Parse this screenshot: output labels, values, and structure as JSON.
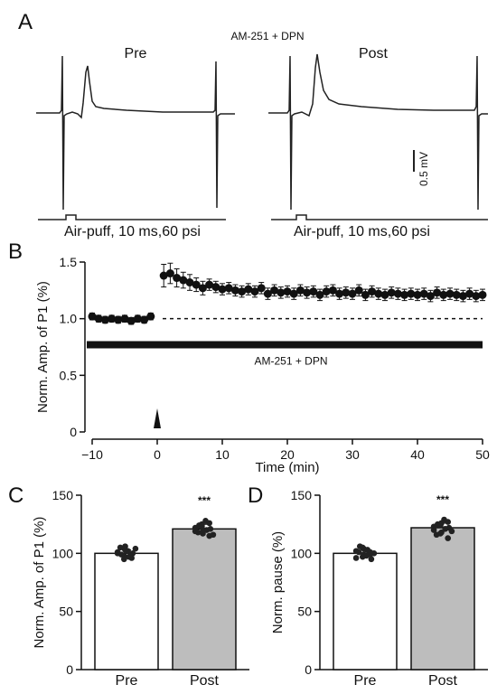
{
  "panels": {
    "A": "A",
    "B": "B",
    "C": "C",
    "D": "D"
  },
  "panel_a": {
    "condition": "AM-251 + DPN",
    "pre_label": "Pre",
    "post_label": "Post",
    "scale_bar": "0.5 mV",
    "stim_label_pre": "Air-puff, 10 ms,60 psi",
    "stim_label_post": "Air-puff, 10 ms,60 psi"
  },
  "chart_data": [
    {
      "type": "scatter",
      "panel": "B",
      "xlabel": "Time (min)",
      "ylabel": "Norm. Amp. of P1 (%)",
      "xlim": [
        -10,
        50
      ],
      "ylim": [
        0,
        1.5
      ],
      "xticks": [
        "−10",
        "0",
        "10",
        "20",
        "30",
        "40",
        "50"
      ],
      "yticks": [
        "0",
        "0.5",
        "1.0",
        "1.5"
      ],
      "drug_label": "AM-251 + DPN",
      "drug_bar": [
        -10,
        50
      ],
      "drug_bar_level": 0.77,
      "baseline": 1.0,
      "stim_time": 0,
      "x": [
        -10,
        -9,
        -8,
        -7,
        -6,
        -5,
        -4,
        -3,
        -2,
        -1,
        1,
        2,
        3,
        4,
        5,
        6,
        7,
        8,
        9,
        10,
        11,
        12,
        13,
        14,
        15,
        16,
        17,
        18,
        19,
        20,
        21,
        22,
        23,
        24,
        25,
        26,
        27,
        28,
        29,
        30,
        31,
        32,
        33,
        34,
        35,
        36,
        37,
        38,
        39,
        40,
        41,
        42,
        43,
        44,
        45,
        46,
        47,
        48,
        49,
        50
      ],
      "y": [
        1.02,
        1.0,
        0.99,
        1.0,
        0.99,
        1.0,
        0.98,
        1.0,
        0.99,
        1.02,
        1.38,
        1.4,
        1.36,
        1.34,
        1.32,
        1.3,
        1.27,
        1.3,
        1.28,
        1.26,
        1.27,
        1.25,
        1.24,
        1.26,
        1.24,
        1.27,
        1.22,
        1.25,
        1.23,
        1.24,
        1.22,
        1.25,
        1.23,
        1.24,
        1.21,
        1.24,
        1.25,
        1.22,
        1.23,
        1.22,
        1.25,
        1.21,
        1.24,
        1.22,
        1.21,
        1.23,
        1.22,
        1.21,
        1.22,
        1.21,
        1.22,
        1.2,
        1.23,
        1.21,
        1.22,
        1.21,
        1.2,
        1.22,
        1.2,
        1.21
      ],
      "err": [
        0.03,
        0.03,
        0.03,
        0.03,
        0.03,
        0.03,
        0.03,
        0.03,
        0.03,
        0.03,
        0.1,
        0.09,
        0.08,
        0.07,
        0.07,
        0.06,
        0.06,
        0.05,
        0.05,
        0.05,
        0.05,
        0.05,
        0.05,
        0.05,
        0.05,
        0.05,
        0.05,
        0.05,
        0.05,
        0.05,
        0.05,
        0.05,
        0.05,
        0.05,
        0.05,
        0.05,
        0.05,
        0.05,
        0.05,
        0.05,
        0.05,
        0.05,
        0.05,
        0.05,
        0.05,
        0.05,
        0.05,
        0.05,
        0.05,
        0.05,
        0.05,
        0.05,
        0.05,
        0.05,
        0.05,
        0.05,
        0.05,
        0.05,
        0.05,
        0.05
      ]
    },
    {
      "type": "bar",
      "panel": "C",
      "ylabel": "Norm. Amp. of P1 (%)",
      "ylim": [
        0,
        150
      ],
      "yticks": [
        "0",
        "50",
        "100",
        "150"
      ],
      "categories": [
        "Pre",
        "Post"
      ],
      "values": [
        100,
        121
      ],
      "errors": [
        3,
        4
      ],
      "colors": [
        "#ffffff",
        "#bdbdbd"
      ],
      "significance": "***",
      "points": [
        [
          101,
          98,
          103,
          96,
          100,
          105,
          99,
          102,
          97,
          104,
          100,
          95,
          106,
          99
        ],
        [
          119,
          123,
          117,
          126,
          121,
          118,
          124,
          128,
          120,
          116,
          122,
          125,
          119,
          115
        ]
      ]
    },
    {
      "type": "bar",
      "panel": "D",
      "ylabel": "Norm. pause (%)",
      "ylim": [
        0,
        150
      ],
      "yticks": [
        "0",
        "50",
        "100",
        "150"
      ],
      "categories": [
        "Pre",
        "Post"
      ],
      "values": [
        100,
        122
      ],
      "errors": [
        3,
        4
      ],
      "colors": [
        "#ffffff",
        "#bdbdbd"
      ],
      "significance": "***",
      "points": [
        [
          102,
          97,
          104,
          99,
          95,
          101,
          106,
          98,
          103,
          100,
          96,
          105,
          99,
          101
        ],
        [
          120,
          124,
          118,
          127,
          122,
          116,
          125,
          129,
          121,
          119,
          123,
          117,
          126,
          113
        ]
      ]
    }
  ]
}
